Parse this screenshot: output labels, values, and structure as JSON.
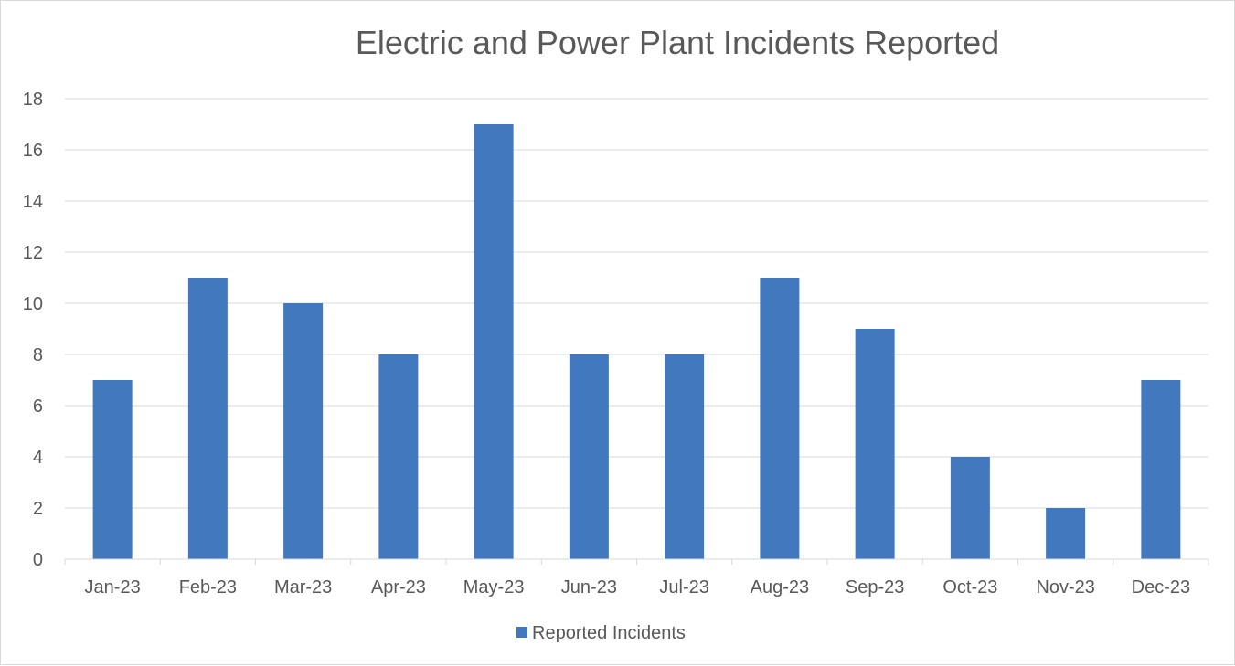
{
  "chart_data": {
    "type": "bar",
    "title": "Electric and Power Plant Incidents Reported",
    "xlabel": "",
    "ylabel": "",
    "categories": [
      "Jan-23",
      "Feb-23",
      "Mar-23",
      "Apr-23",
      "May-23",
      "Jun-23",
      "Jul-23",
      "Aug-23",
      "Sep-23",
      "Oct-23",
      "Nov-23",
      "Dec-23"
    ],
    "series": [
      {
        "name": "Reported Incidents",
        "values": [
          7,
          11,
          10,
          8,
          17,
          8,
          8,
          11,
          9,
          4,
          2,
          7
        ],
        "color": "#4178be"
      }
    ],
    "ylim": [
      0,
      18
    ],
    "yticks": [
      "0",
      "2",
      "4",
      "6",
      "8",
      "10",
      "12",
      "14",
      "16",
      "18"
    ],
    "grid": true,
    "legend_position": "bottom"
  }
}
